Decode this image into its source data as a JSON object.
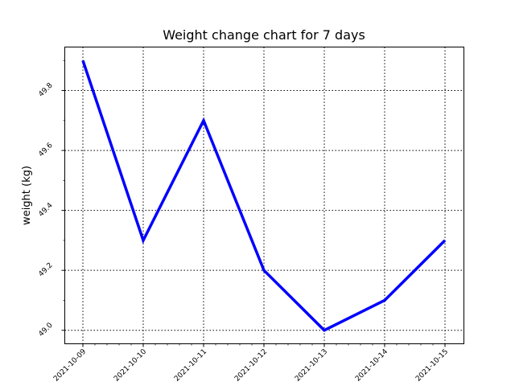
{
  "chart_data": {
    "type": "line",
    "title": "Weight change chart for 7 days",
    "xlabel": "",
    "ylabel": "weight (kg)",
    "categories": [
      "2021-10-09",
      "2021-10-10",
      "2021-10-11",
      "2021-10-12",
      "2021-10-13",
      "2021-10-14",
      "2021-10-15"
    ],
    "series": [
      {
        "values": [
          49.9,
          49.3,
          49.7,
          49.2,
          49.0,
          49.1,
          49.3
        ],
        "color": "#0000ff"
      }
    ],
    "yticks": [
      49.0,
      49.2,
      49.4,
      49.6,
      49.8
    ],
    "ytick_labels": [
      "49.0",
      "49.2",
      "49.4",
      "49.6",
      "49.8"
    ],
    "ylim": [
      48.955,
      49.945
    ],
    "grid": true,
    "grid_style": "dotted"
  }
}
